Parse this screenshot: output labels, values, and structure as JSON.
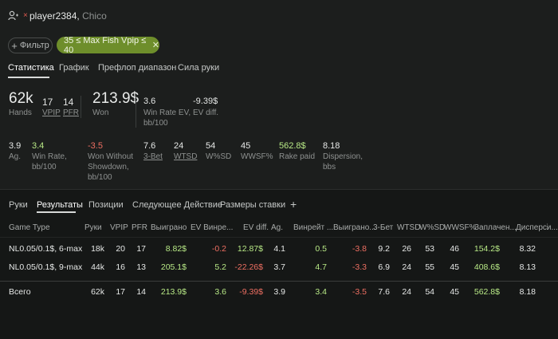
{
  "header": {
    "player_name": "player2384,",
    "player_sub": "Chico"
  },
  "filter": {
    "button_label": "Фильтр",
    "chip_label": "35 ≤ Max Fish Vpip ≤ 40"
  },
  "tabs": [
    "Статистика",
    "График",
    "Префлоп диапазон",
    "Сила руки"
  ],
  "summary": {
    "hands_value": "62k",
    "hands_label": "Hands",
    "vpip_value": "17",
    "vpip_label": "VPIP",
    "pfr_value": "14",
    "pfr_label": "PFR",
    "won_value": "213.9$",
    "won_label": "Won",
    "winrate_ev_value": "3.6",
    "winrate_ev_label": "Win Rate EV, bb/100",
    "ev_diff_value": "-9.39$",
    "ev_diff_label": "EV diff."
  },
  "stats_row": {
    "ag_value": "3.9",
    "ag_label": "Ag.",
    "winrate_value": "3.4",
    "winrate_label": "Win Rate, bb/100",
    "wwsd_value": "-3.5",
    "wwsd_label": "Won Without Showdown, bb/100",
    "threebet_value": "7.6",
    "threebet_label": "3-Bet",
    "wtsd_value": "24",
    "wtsd_label": "WTSD",
    "wsd_value": "54",
    "wsd_label": "W%SD",
    "wwsf_value": "45",
    "wwsf_label": "WWSF%",
    "rake_value": "562.8$",
    "rake_label": "Rake paid",
    "dispersion_value": "8.18",
    "dispersion_label": "Dispersion, bbs"
  },
  "lower_tabs": [
    "Руки",
    "Результаты",
    "Позиции",
    "Следующее Действие",
    "Размеры ставки"
  ],
  "add_tab": "+",
  "table": {
    "headers": [
      "Game Type",
      "Руки",
      "VPIP",
      "PFR",
      "Выиграно",
      "EV Винре...",
      "EV diff.",
      "Ag.",
      "Винрейт ...",
      "Выиграно...",
      "3-Бет",
      "WTSD",
      "W%SD",
      "WWSF%",
      "Заплачен...",
      "Дисперси..."
    ],
    "rows": [
      [
        "NL0.05/0.1$, 6-max",
        "18k",
        "20",
        "17",
        "8.82$",
        "-0.2",
        "12.87$",
        "4.1",
        "0.5",
        "-3.8",
        "9.2",
        "26",
        "53",
        "46",
        "154.2$",
        "8.32"
      ],
      [
        "NL0.05/0.1$, 9-max",
        "44k",
        "16",
        "13",
        "205.1$",
        "5.2",
        "-22.26$",
        "3.7",
        "4.7",
        "-3.3",
        "6.9",
        "24",
        "55",
        "45",
        "408.6$",
        "8.13"
      ]
    ],
    "total": [
      "Всего",
      "62k",
      "17",
      "14",
      "213.9$",
      "3.6",
      "-9.39$",
      "3.9",
      "3.4",
      "-3.5",
      "7.6",
      "24",
      "54",
      "45",
      "562.8$",
      "8.18"
    ]
  }
}
